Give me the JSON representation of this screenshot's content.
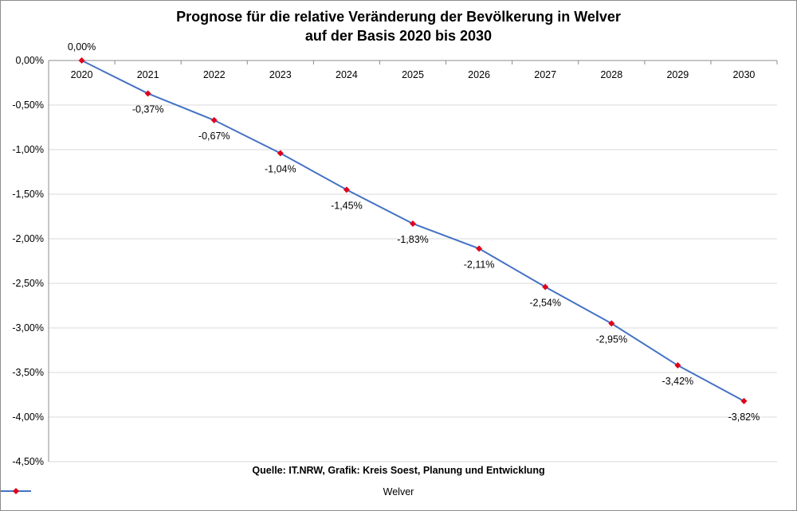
{
  "chart_data": {
    "type": "line",
    "title_line1": "Prognose für die relative Veränderung der Bevölkerung in Welver",
    "title_line2": "auf der Basis 2020 bis 2030",
    "categories": [
      "2020",
      "2021",
      "2022",
      "2023",
      "2024",
      "2025",
      "2026",
      "2027",
      "2028",
      "2029",
      "2030"
    ],
    "series": [
      {
        "name": "Welver",
        "values": [
          0.0,
          -0.37,
          -0.67,
          -1.04,
          -1.45,
          -1.83,
          -2.11,
          -2.54,
          -2.95,
          -3.42,
          -3.82
        ],
        "labels": [
          "0,00%",
          "-0,37%",
          "-0,67%",
          "-1,04%",
          "-1,45%",
          "-1,83%",
          "-2,11%",
          "-2,54%",
          "-2,95%",
          "-3,42%",
          "-3,82%"
        ],
        "line_color": "#4472C4",
        "marker_color": "#E0001B"
      }
    ],
    "yticks": [
      0,
      -0.5,
      -1.0,
      -1.5,
      -2.0,
      -2.5,
      -3.0,
      -3.5,
      -4.0,
      -4.5
    ],
    "ytick_labels": [
      "0,00%",
      "-0,50%",
      "-1,00%",
      "-1,50%",
      "-2,00%",
      "-2,50%",
      "-3,00%",
      "-3,50%",
      "-4,00%",
      "-4,50%"
    ],
    "ylim": [
      -4.5,
      0
    ],
    "grid": true,
    "source": "Quelle: IT.NRW, Grafik: Kreis Soest, Planung und Entwicklung",
    "legend_position": "bottom"
  }
}
